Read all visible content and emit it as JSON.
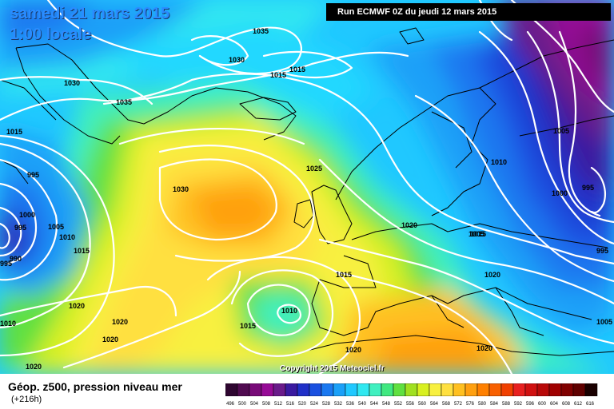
{
  "header": {
    "date": "samedi 21 mars 2015",
    "local_time": "1:00 locale",
    "run_info": "Run ECMWF 0Z du jeudi 12 mars 2015"
  },
  "footer": {
    "field_title": "Géop. z500, pression niveau mer",
    "lead_time": "(+216h)",
    "copyright": "Copyright 2015 Meteociel.fr"
  },
  "color_scale": {
    "labels": [
      "496",
      "500",
      "504",
      "508",
      "512",
      "516",
      "520",
      "524",
      "528",
      "532",
      "536",
      "540",
      "544",
      "548",
      "552",
      "556",
      "560",
      "564",
      "568",
      "572",
      "576",
      "580",
      "584",
      "588",
      "592",
      "596",
      "600",
      "604",
      "608",
      "612",
      "616"
    ],
    "colors": [
      "#2e0630",
      "#500a50",
      "#780a78",
      "#960a96",
      "#6a1a8a",
      "#3a1aa0",
      "#2030c8",
      "#1a50e0",
      "#1a78f0",
      "#1aa0f8",
      "#20c8ff",
      "#30e8f0",
      "#40f0c0",
      "#40e880",
      "#60e040",
      "#a0e020",
      "#d8f020",
      "#f8f040",
      "#ffe040",
      "#ffc020",
      "#ffa010",
      "#ff8000",
      "#f86000",
      "#f04000",
      "#e82020",
      "#d01010",
      "#b80808",
      "#a00000",
      "#800000",
      "#600000",
      "#1a0000"
    ]
  },
  "pressure_labels": [
    {
      "value": "1035"
    },
    {
      "value": "1030"
    },
    {
      "value": "1015"
    },
    {
      "value": "1015"
    },
    {
      "value": "1030"
    },
    {
      "value": "1035"
    },
    {
      "value": "1015"
    },
    {
      "value": "995"
    },
    {
      "value": "1030"
    },
    {
      "value": "1025"
    },
    {
      "value": "1000"
    },
    {
      "value": "995"
    },
    {
      "value": "1005"
    },
    {
      "value": "1010"
    },
    {
      "value": "1015"
    },
    {
      "value": "990"
    },
    {
      "value": "995"
    },
    {
      "value": "1020"
    },
    {
      "value": "1015"
    },
    {
      "value": "1020"
    },
    {
      "value": "1010"
    },
    {
      "value": "1020"
    },
    {
      "value": "1020"
    },
    {
      "value": "1010"
    },
    {
      "value": "1015"
    },
    {
      "value": "1020"
    },
    {
      "value": "1020"
    },
    {
      "value": "1005"
    },
    {
      "value": "1010"
    },
    {
      "value": "1005"
    },
    {
      "value": "1000"
    },
    {
      "value": "995"
    },
    {
      "value": "995"
    },
    {
      "value": "1015"
    },
    {
      "value": "1020"
    },
    {
      "value": "1020"
    },
    {
      "value": "1005"
    }
  ]
}
